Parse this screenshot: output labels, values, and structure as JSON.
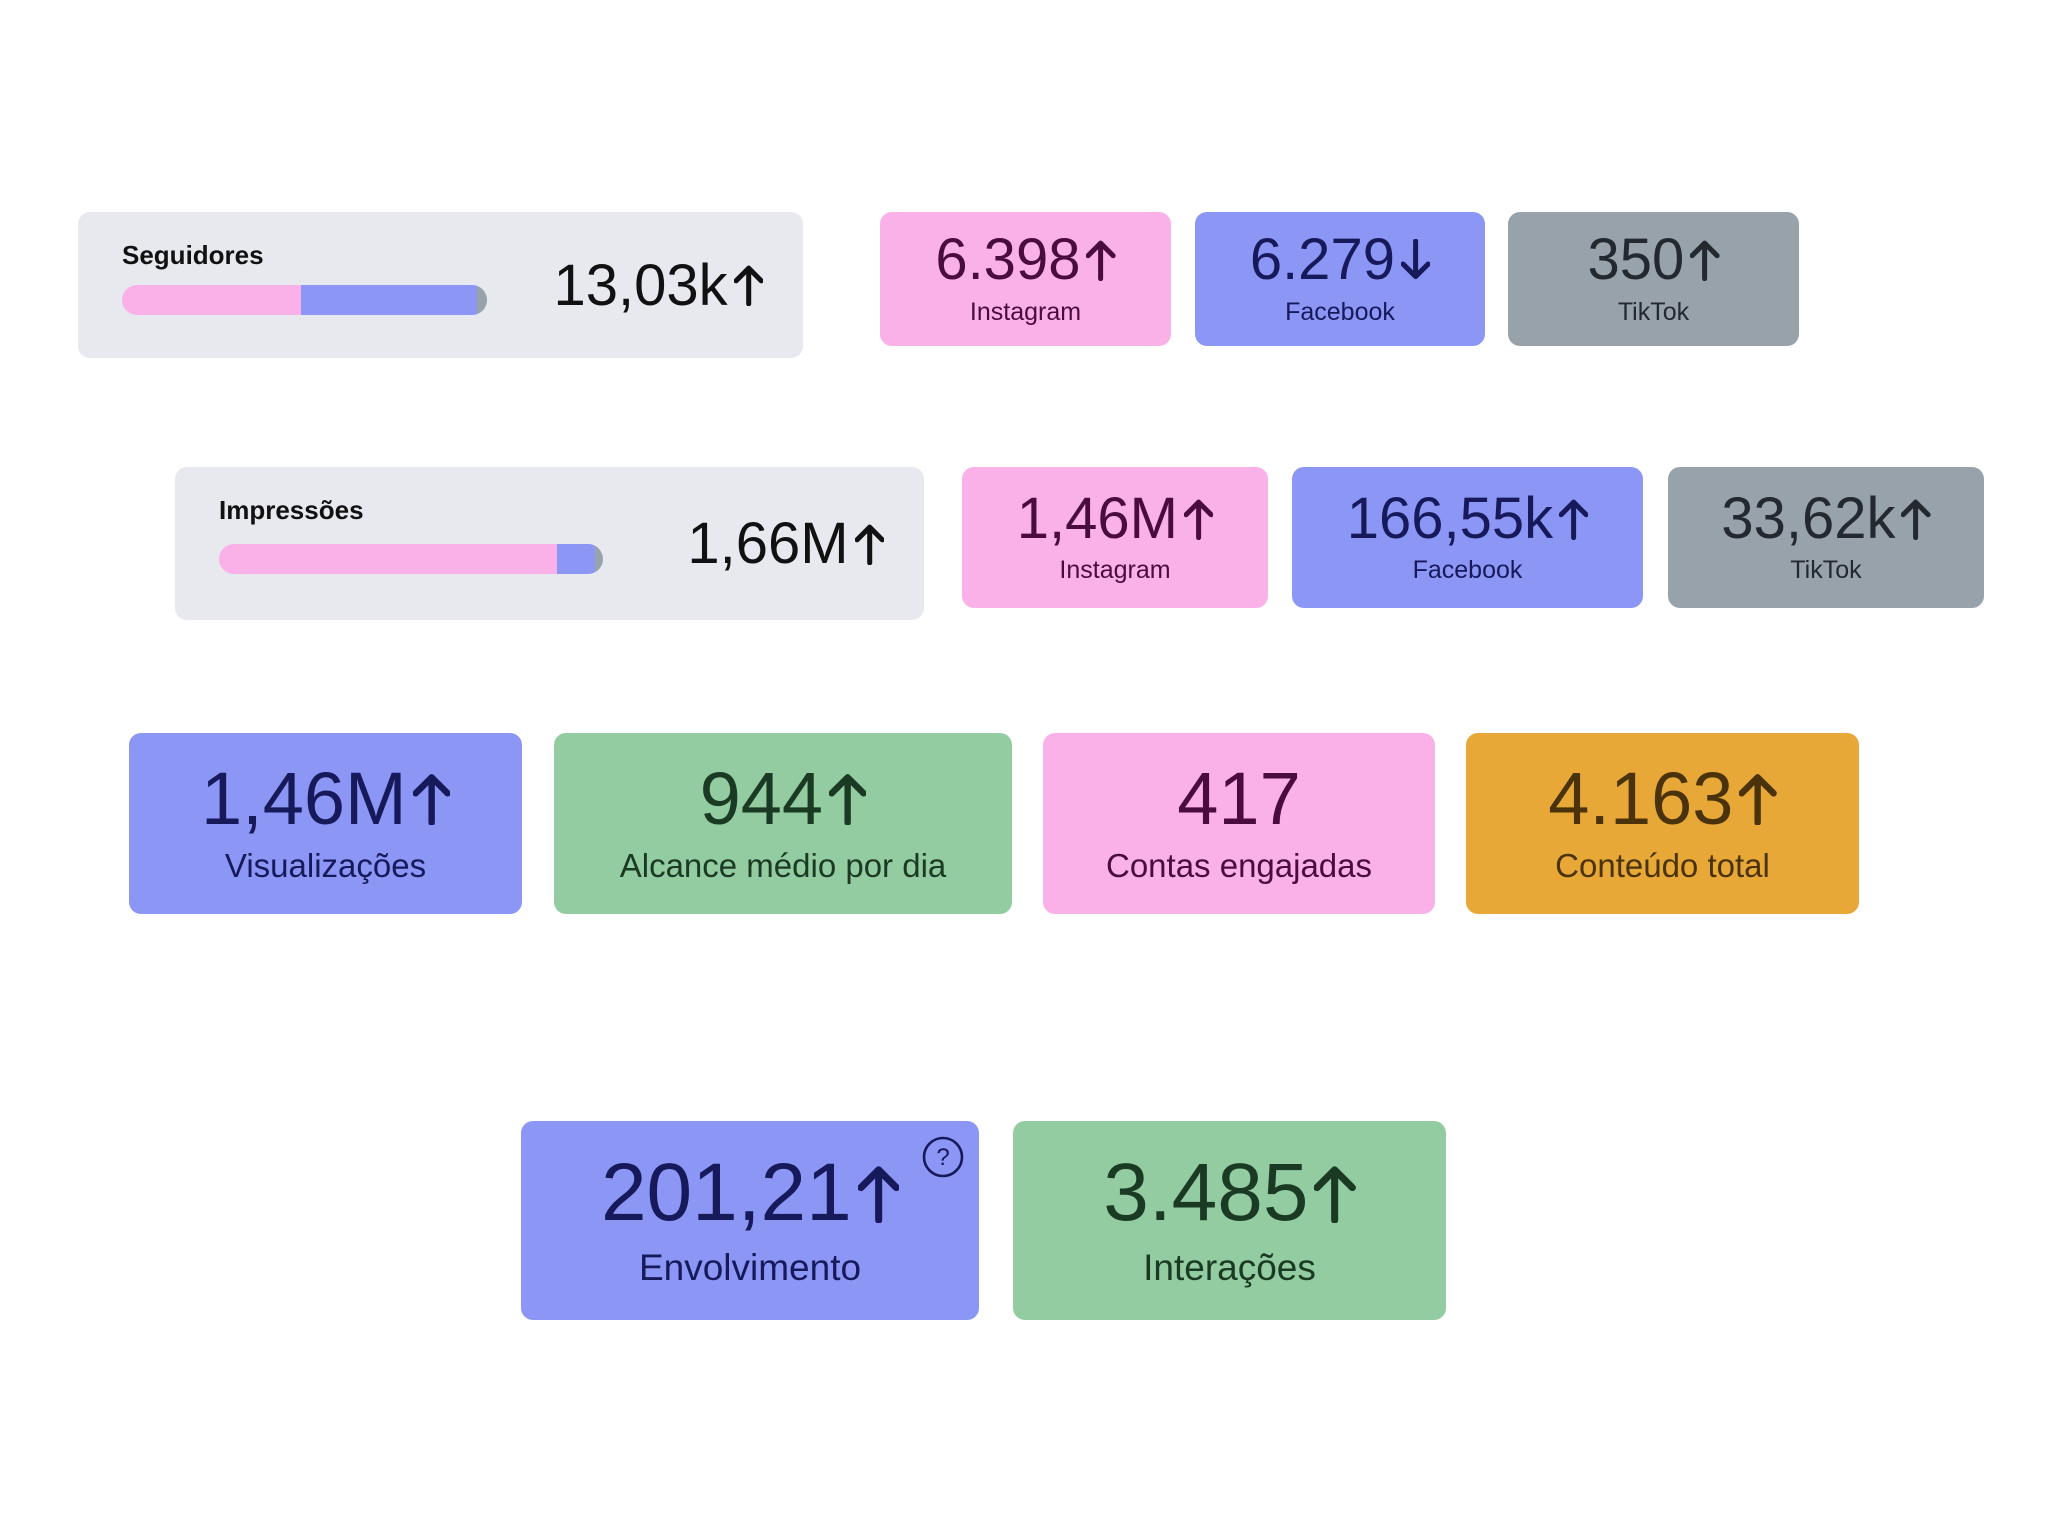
{
  "followers": {
    "title": "Seguidores",
    "total": "13,03k",
    "trend": "up",
    "platforms": [
      {
        "name": "Instagram",
        "value": 6398,
        "value_label": "6.398",
        "trend": "up",
        "color": "#f9b1e8",
        "text_color": "#4a0c3c"
      },
      {
        "name": "Facebook",
        "value": 6279,
        "value_label": "6.279",
        "trend": "down",
        "color": "#8c96f5",
        "text_color": "#16195a"
      },
      {
        "name": "TikTok",
        "value": 350,
        "value_label": "350",
        "trend": "up",
        "color": "#97a2ab",
        "text_color": "#23292e"
      }
    ]
  },
  "impressions": {
    "title": "Impressões",
    "total": "1,66M",
    "trend": "up",
    "platforms": [
      {
        "name": "Instagram",
        "value": 1460000,
        "value_label": "1,46M",
        "trend": "up",
        "color": "#f9b1e8",
        "text_color": "#4a0c3c"
      },
      {
        "name": "Facebook",
        "value": 166550,
        "value_label": "166,55k",
        "trend": "up",
        "color": "#8c96f5",
        "text_color": "#16195a"
      },
      {
        "name": "TikTok",
        "value": 33620,
        "value_label": "33,62k",
        "trend": "up",
        "color": "#97a2ab",
        "text_color": "#23292e"
      }
    ]
  },
  "metrics": [
    {
      "value": "1,46M",
      "label": "Visualizações",
      "trend": "up",
      "color": "#8c96f5",
      "text_color": "#16195a"
    },
    {
      "value": "944",
      "label": "Alcance médio por dia",
      "trend": "up",
      "color": "#93cca1",
      "text_color": "#1b3a24"
    },
    {
      "value": "417",
      "label": "Contas engajadas",
      "color": "#f9b1e8",
      "text_color": "#4a0c3c"
    },
    {
      "value": "4.163",
      "label": "Conteúdo total",
      "trend": "up",
      "color": "#e8a838",
      "text_color": "#4a330a"
    }
  ],
  "engagement": [
    {
      "value": "201,21",
      "label": "Envolvimento",
      "trend": "up",
      "help": true,
      "color": "#8c96f5",
      "text_color": "#16195a"
    },
    {
      "value": "3.485",
      "label": "Interações",
      "trend": "up",
      "color": "#93cca1",
      "text_color": "#1b3a24"
    }
  ]
}
